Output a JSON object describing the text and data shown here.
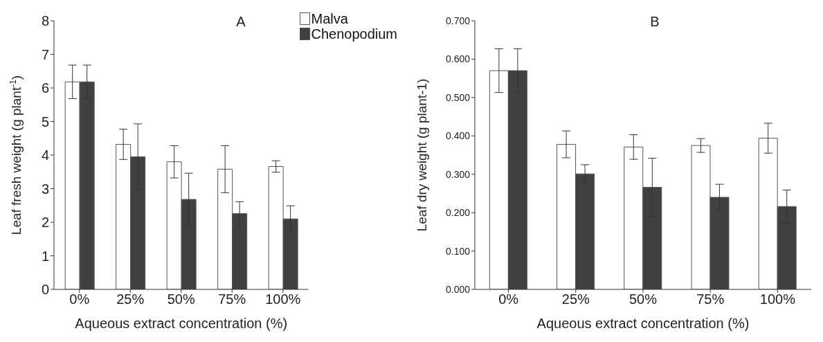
{
  "chart_data": [
    {
      "type": "bar",
      "title": "A",
      "xlabel": "Aqueous extract concentration (%)",
      "ylabel": "Leaf fresh weight (g plant$^{-1}$)",
      "categories": [
        "0%",
        "25%",
        "50%",
        "75%",
        "100%"
      ],
      "series": [
        {
          "name": "Malva",
          "color": "#ffffff",
          "values": [
            6.18,
            4.32,
            3.8,
            3.58,
            3.66
          ],
          "errors": [
            0.5,
            0.45,
            0.48,
            0.7,
            0.17
          ]
        },
        {
          "name": "Chenopodium",
          "color": "#404040",
          "values": [
            6.18,
            3.95,
            2.68,
            2.26,
            2.1
          ],
          "errors": [
            0.5,
            0.98,
            0.78,
            0.35,
            0.39
          ]
        }
      ],
      "ylim": [
        0,
        8
      ],
      "yticks": [
        0,
        1,
        2,
        3,
        4,
        5,
        6,
        7,
        8
      ],
      "grid": false,
      "legend": "top right"
    },
    {
      "type": "bar",
      "title": "B",
      "xlabel": "Aqueous extract concentration (%)",
      "ylabel": "Leaf dry weight (g plant-1)",
      "categories": [
        "0%",
        "25%",
        "50%",
        "75%",
        "100%"
      ],
      "series": [
        {
          "color": "#ffffff",
          "values": [
            0.57,
            0.378,
            0.371,
            0.375,
            0.394
          ],
          "errors": [
            0.057,
            0.035,
            0.032,
            0.018,
            0.039
          ]
        },
        {
          "color": "#404040",
          "values": [
            0.57,
            0.301,
            0.266,
            0.24,
            0.216
          ],
          "errors": [
            0.057,
            0.024,
            0.076,
            0.034,
            0.043
          ]
        }
      ],
      "ylim": [
        0,
        0.7
      ],
      "yticks": [
        {
          "value": 0,
          "label": "0.000"
        },
        {
          "value": 0.1,
          "label": "0.100"
        },
        {
          "value": 0.2,
          "label": "0.200"
        },
        {
          "value": 0.3,
          "label": "0.300"
        },
        {
          "value": 0.4,
          "label": "0.400"
        },
        {
          "value": 0.5,
          "label": "0.500"
        },
        {
          "value": 0.6,
          "label": "0.600"
        },
        {
          "value": 0.7,
          "label": "0.700"
        }
      ],
      "grid": false,
      "legend": false
    }
  ]
}
